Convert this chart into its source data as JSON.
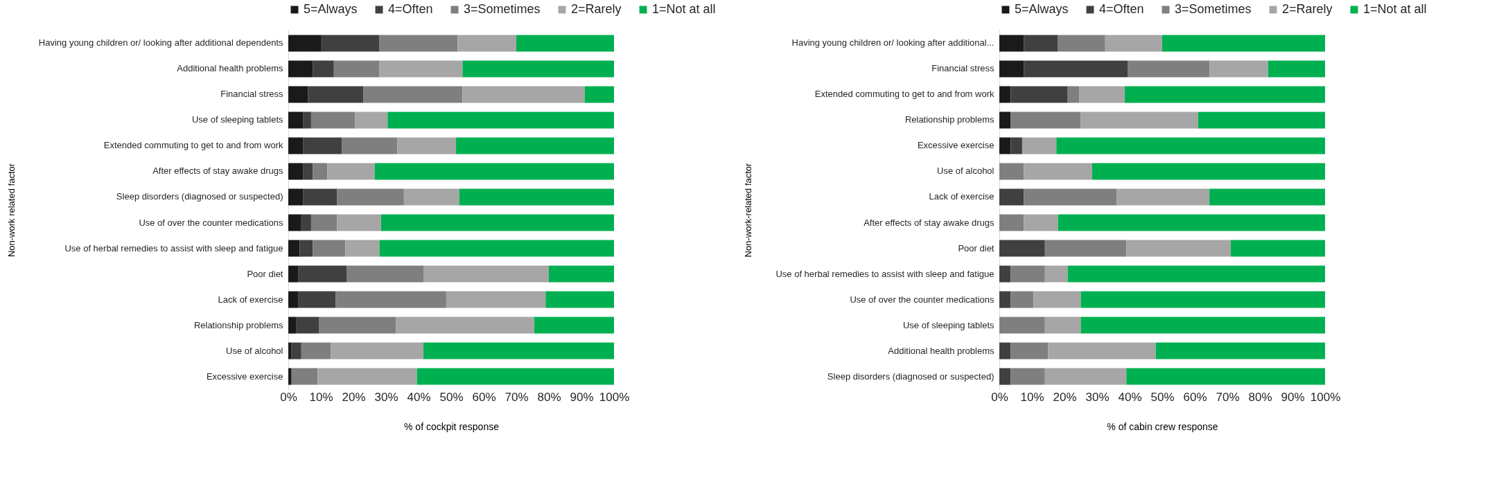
{
  "chart_data": [
    {
      "type": "bar",
      "orientation": "horizontal",
      "stacked": true,
      "legend": "top",
      "xlabel": "% of cockpit response",
      "ylabel": "Non-work related factor",
      "categories": [
        "Having young children or/ looking after additional dependents",
        "Additional health problems",
        "Financial stress",
        "Use of sleeping tablets",
        "Extended commuting to get to and from work",
        "After effects of stay awake drugs",
        "Sleep disorders (diagnosed or suspected)",
        "Use of over the counter medications",
        "Use of herbal remedies to assist with sleep and fatigue",
        "Poor diet",
        "Lack of exercise",
        "Relationship problems",
        "Use of alcohol",
        "Excessive exercise"
      ],
      "xlim": [
        0,
        100
      ],
      "xticks": [
        {
          "value": 0,
          "label": "0%"
        },
        {
          "value": 10,
          "label": "10%"
        },
        {
          "value": 20,
          "label": "20%"
        },
        {
          "value": 30,
          "label": "30%"
        },
        {
          "value": 40,
          "label": "40%"
        },
        {
          "value": 50,
          "label": "50%"
        },
        {
          "value": 60,
          "label": "60%"
        },
        {
          "value": 70,
          "label": "70%"
        },
        {
          "value": 80,
          "label": "80%"
        },
        {
          "value": 90,
          "label": "90%"
        },
        {
          "value": 100,
          "label": "100%"
        }
      ],
      "series": [
        {
          "name": "5=Always",
          "color": "#1a1a1a",
          "values": [
            10,
            7.5,
            6,
            4.5,
            4.5,
            4.5,
            4.5,
            4,
            3.5,
            3,
            3,
            2.5,
            1,
            1
          ]
        },
        {
          "name": "4=Often",
          "color": "#404040",
          "values": [
            18,
            6.5,
            17,
            2.5,
            12,
            3,
            10.5,
            3,
            4,
            15,
            11.5,
            7,
            3,
            0
          ]
        },
        {
          "name": "3=Sometimes",
          "color": "#7f7f7f",
          "values": [
            24,
            14,
            30.5,
            13.5,
            17,
            4.5,
            20.5,
            8,
            10,
            23.5,
            34,
            23.5,
            9,
            8
          ]
        },
        {
          "name": "2=Rarely",
          "color": "#a6a6a6",
          "values": [
            18,
            25.5,
            37.5,
            10,
            18,
            14.5,
            17,
            13.5,
            10.5,
            38.5,
            30.5,
            42.5,
            28.5,
            30.5
          ]
        },
        {
          "name": "1=Not at all",
          "color": "#00b050",
          "values": [
            30,
            46.5,
            9,
            69.5,
            48.5,
            73.5,
            47.5,
            71.5,
            72,
            20,
            21,
            24.5,
            58.5,
            60.5
          ]
        }
      ]
    },
    {
      "type": "bar",
      "orientation": "horizontal",
      "stacked": true,
      "legend": "top",
      "xlabel": "% of cabin crew response",
      "ylabel": "Non-work-related factor",
      "categories": [
        "Having young children or/ looking after additional...",
        "Financial stress",
        "Extended commuting to get to and from work",
        "Relationship problems",
        "Excessive exercise",
        "Use of alcohol",
        "Lack of exercise",
        "After effects of stay awake drugs",
        "Poor diet",
        "Use of herbal remedies to assist with sleep and fatigue",
        "Use of over the counter medications",
        "Use of sleeping tablets",
        "Additional health problems",
        "Sleep disorders (diagnosed or suspected)"
      ],
      "xlim": [
        0,
        100
      ],
      "xticks": [
        {
          "value": 0,
          "label": "0%"
        },
        {
          "value": 10,
          "label": "10%"
        },
        {
          "value": 20,
          "label": "20%"
        },
        {
          "value": 30,
          "label": "30%"
        },
        {
          "value": 40,
          "label": "40%"
        },
        {
          "value": 50,
          "label": "50%"
        },
        {
          "value": 60,
          "label": "60%"
        },
        {
          "value": 70,
          "label": "70%"
        },
        {
          "value": 80,
          "label": "80%"
        },
        {
          "value": 90,
          "label": "90%"
        },
        {
          "value": 100,
          "label": "100%"
        }
      ],
      "series": [
        {
          "name": "5=Always",
          "color": "#1a1a1a",
          "values": [
            7.5,
            7.5,
            3.5,
            3.5,
            3.5,
            0,
            0,
            0,
            0,
            0,
            0,
            0,
            0,
            0
          ]
        },
        {
          "name": "4=Often",
          "color": "#404040",
          "values": [
            10.5,
            32,
            17.5,
            0,
            3.5,
            0,
            7.5,
            0,
            14,
            3.5,
            3.5,
            0,
            3.5,
            3.5
          ]
        },
        {
          "name": "3=Sometimes",
          "color": "#7f7f7f",
          "values": [
            14.5,
            25,
            3.5,
            21.5,
            0,
            7.5,
            28.5,
            7.5,
            25,
            10.5,
            7,
            14,
            11.5,
            10.5
          ]
        },
        {
          "name": "2=Rarely",
          "color": "#a6a6a6",
          "values": [
            17.5,
            18,
            14,
            36,
            10.5,
            21,
            28.5,
            10.5,
            32,
            7,
            14.5,
            11,
            33,
            25
          ]
        },
        {
          "name": "1=Not at all",
          "color": "#00b050",
          "values": [
            50,
            17.5,
            61.5,
            39,
            82.5,
            71.5,
            35.5,
            82,
            29,
            79,
            75,
            75,
            52,
            61
          ]
        }
      ]
    }
  ]
}
